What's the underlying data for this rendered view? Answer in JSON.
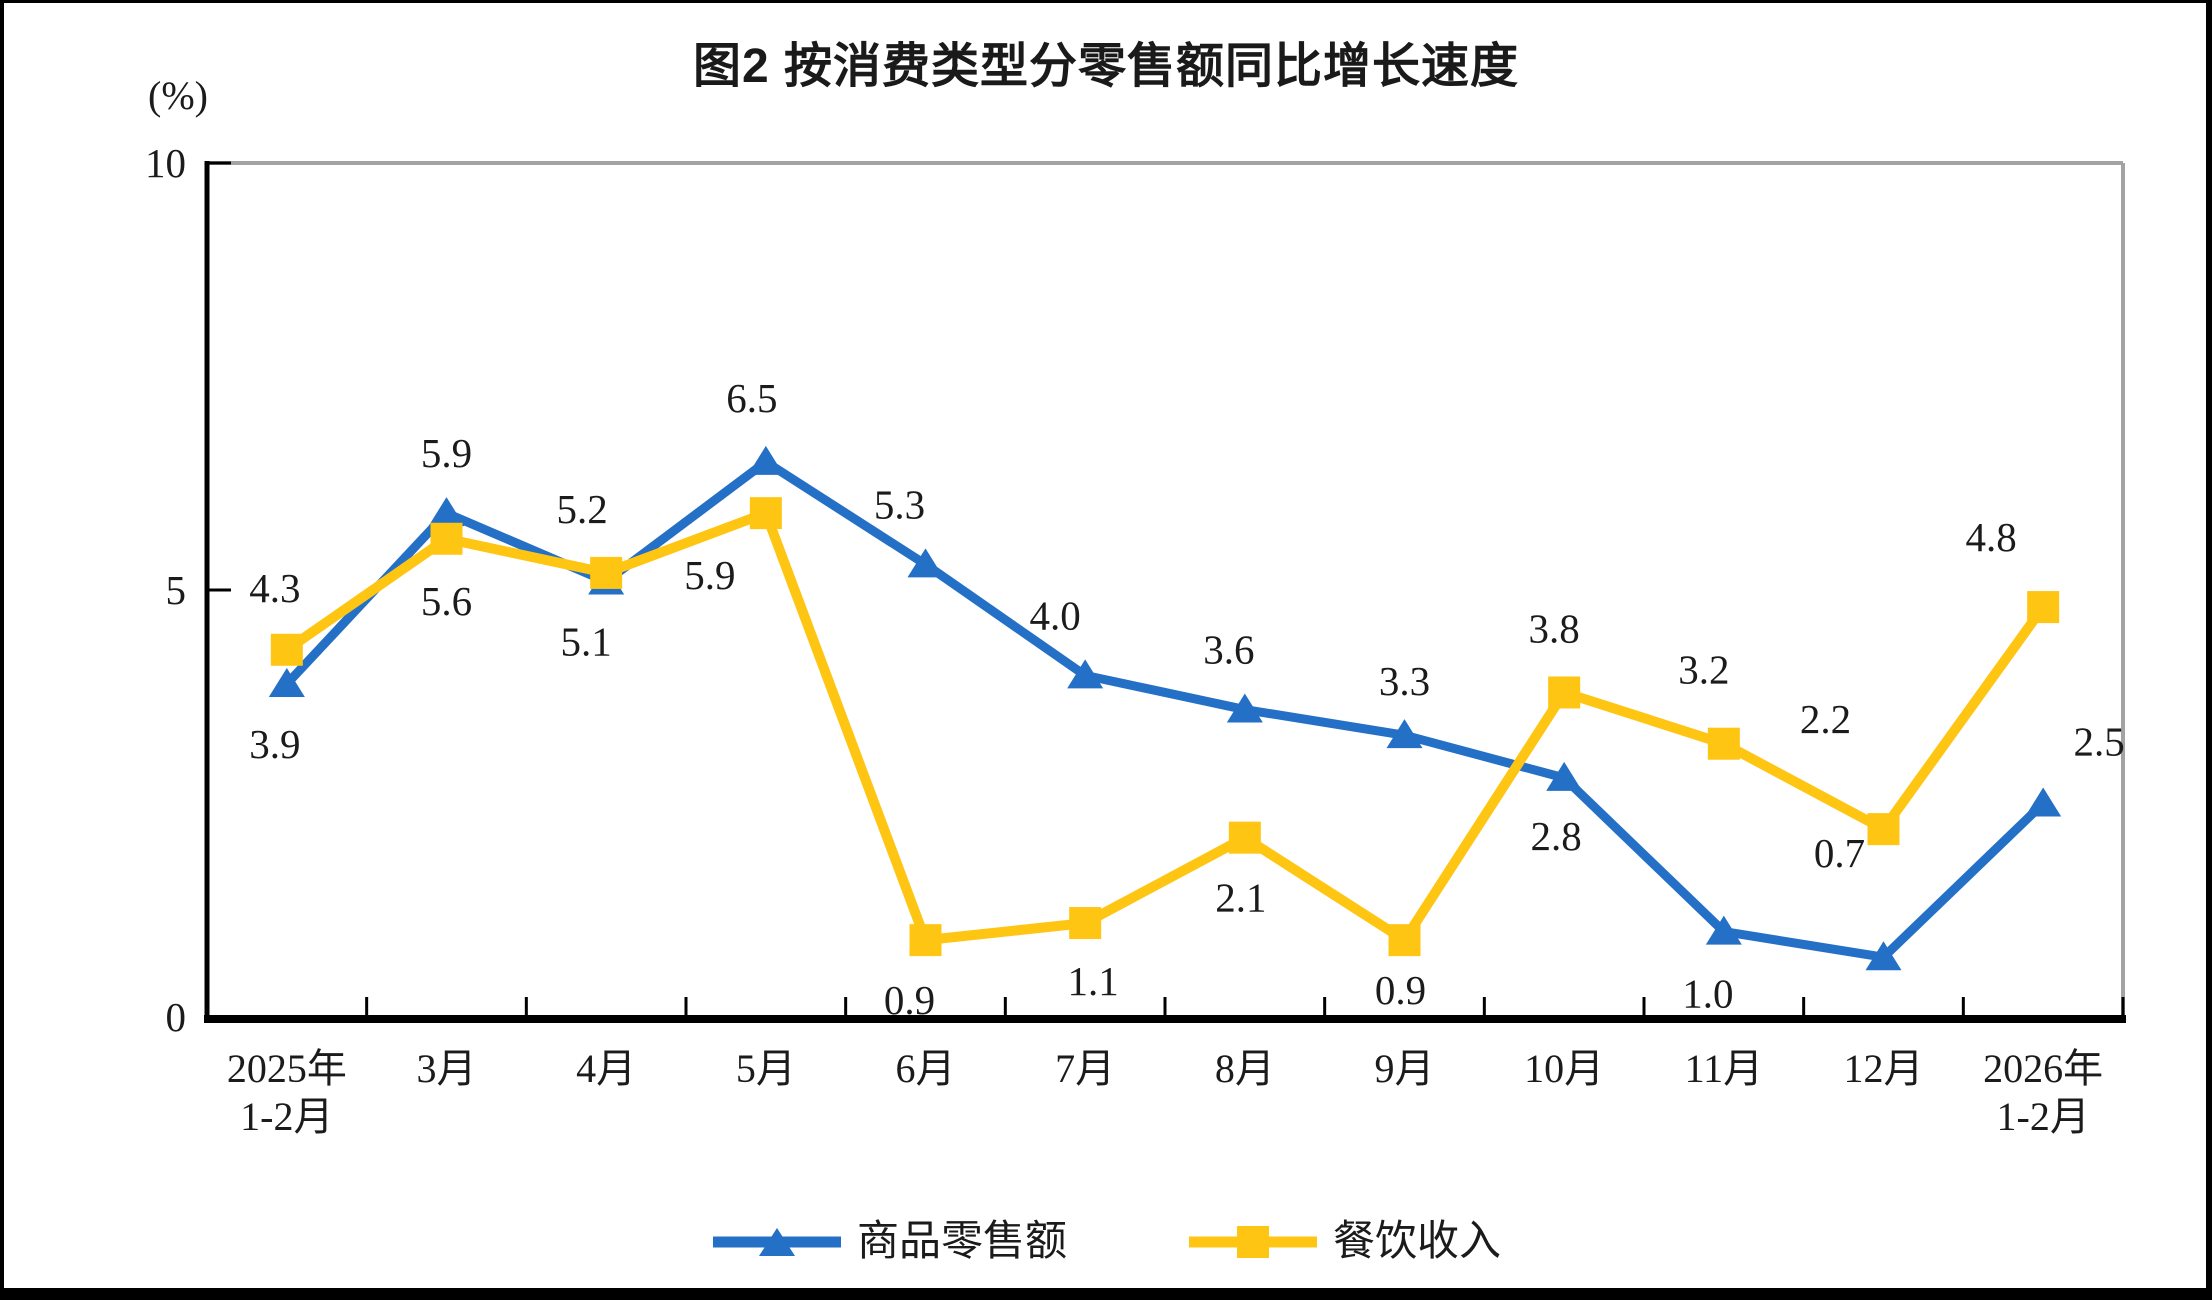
{
  "title": "图2 按消费类型分零售额同比增长速度",
  "y_axis_unit": "(%)",
  "colors": {
    "series_goods_blue": "#2470C6",
    "series_catering_yellow": "#FFC513",
    "frame_gray": "#A3A3A3",
    "axis_black": "#000000",
    "label_text": "#1B1B1B"
  },
  "legend": {
    "items": [
      {
        "label": "商品零售额",
        "marker": "triangle",
        "color": "#2470C6"
      },
      {
        "label": "餐饮收入",
        "marker": "square",
        "color": "#FFC513"
      }
    ]
  },
  "chart_data": {
    "type": "line",
    "title": "图2 按消费类型分零售额同比增长速度",
    "xlabel": "",
    "ylabel": "(%)",
    "ylim": [
      0,
      10
    ],
    "yticks": [
      0,
      5,
      10
    ],
    "ytick_labels": [
      "0",
      "5",
      "10"
    ],
    "grid": false,
    "legend_position": "bottom",
    "categories": [
      [
        "2025年",
        "1-2月"
      ],
      [
        "3月"
      ],
      [
        "4月"
      ],
      [
        "5月"
      ],
      [
        "6月"
      ],
      [
        "7月"
      ],
      [
        "8月"
      ],
      [
        "9月"
      ],
      [
        "10月"
      ],
      [
        "11月"
      ],
      [
        "12月"
      ],
      [
        "2026年",
        "1-2月"
      ]
    ],
    "series": [
      {
        "name": "商品零售额",
        "marker": "triangle",
        "color": "#2470C6",
        "line_width": 9,
        "values": [
          3.9,
          5.9,
          5.1,
          6.5,
          5.3,
          4.0,
          3.6,
          3.3,
          2.8,
          1.0,
          0.7,
          2.5
        ],
        "data_labels": [
          "3.9",
          "5.9",
          "5.1",
          "6.5",
          "5.3",
          "4.0",
          "3.6",
          "3.3",
          "2.8",
          "1.0",
          "0.7",
          "2.5"
        ],
        "label_offsets": [
          [
            -12,
            74
          ],
          [
            0,
            -46
          ],
          [
            -20,
            74
          ],
          [
            -14,
            -50
          ],
          [
            -26,
            -46
          ],
          [
            -30,
            -46
          ],
          [
            -16,
            -46
          ],
          [
            0,
            -40
          ],
          [
            -8,
            72
          ],
          [
            -16,
            76
          ],
          [
            -44,
            -90
          ],
          [
            56,
            -48
          ]
        ]
      },
      {
        "name": "餐饮收入",
        "marker": "square",
        "color": "#FFC513",
        "line_width": 10,
        "values": [
          4.3,
          5.6,
          5.2,
          5.9,
          0.9,
          1.1,
          2.1,
          0.9,
          3.8,
          3.2,
          2.2,
          4.8
        ],
        "data_labels": [
          "4.3",
          "5.6",
          "5.2",
          "5.9",
          "0.9",
          "1.1",
          "2.1",
          "0.9",
          "3.8",
          "3.2",
          "2.2",
          "4.8"
        ],
        "label_offsets": [
          [
            -12,
            -48
          ],
          [
            0,
            76
          ],
          [
            -24,
            -50
          ],
          [
            -56,
            76
          ],
          [
            -16,
            74
          ],
          [
            8,
            72
          ],
          [
            -4,
            74
          ],
          [
            -4,
            64
          ],
          [
            -10,
            -50
          ],
          [
            -20,
            -60
          ],
          [
            -58,
            -96
          ],
          [
            -52,
            -56
          ]
        ]
      }
    ]
  }
}
